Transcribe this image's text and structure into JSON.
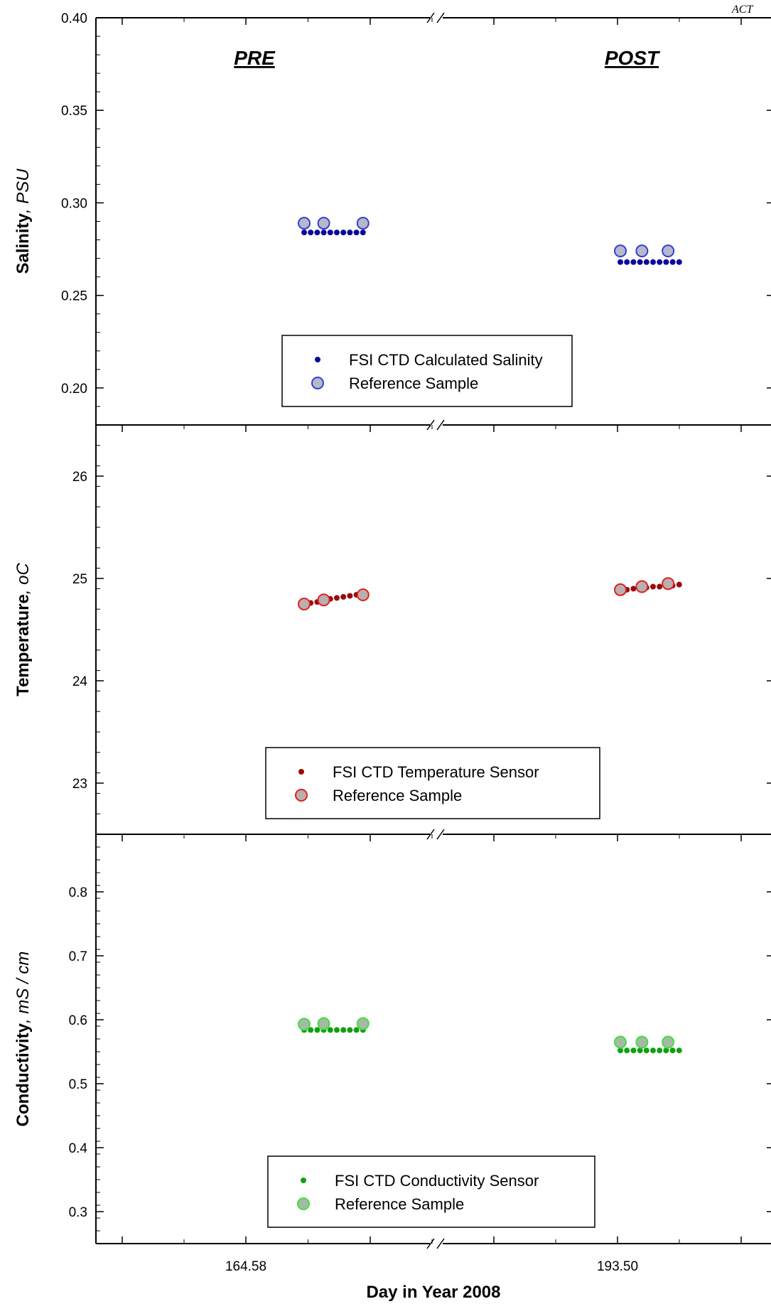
{
  "header": {
    "corner_text": "ACT"
  },
  "chart_data": [
    {
      "type": "scatter",
      "panel": "salinity",
      "ylabel": "Salinity",
      "ylabel_unit": ", PSU",
      "ylim": [
        0.18,
        0.4
      ],
      "yticks": [
        0.2,
        0.25,
        0.3,
        0.35,
        0.4
      ],
      "ytick_labels": [
        "0.20",
        "0.25",
        "0.30",
        "0.35",
        "0.40"
      ],
      "phase_labels": [
        "PRE",
        "POST"
      ],
      "legend_placement": "bottom-center",
      "series": [
        {
          "name": "FSI CTD Calculated Salinity",
          "marker": "small-dot",
          "color": "#0a0a9a",
          "pre": {
            "x_offsets": [
              0,
              1,
              2,
              3,
              4,
              5,
              6,
              7,
              8,
              9
            ],
            "y": [
              0.284,
              0.284,
              0.284,
              0.284,
              0.284,
              0.284,
              0.284,
              0.284,
              0.284,
              0.284
            ]
          },
          "post": {
            "x_offsets": [
              0,
              1,
              2,
              3,
              4,
              5,
              6,
              7,
              8,
              9
            ],
            "y": [
              0.268,
              0.268,
              0.268,
              0.268,
              0.268,
              0.268,
              0.268,
              0.268,
              0.268,
              0.268
            ]
          }
        },
        {
          "name": "Reference Sample",
          "marker": "circle",
          "color": "#3040d8",
          "fill": "#b8b8c8",
          "pre": {
            "x_offsets": [
              0,
              3,
              9
            ],
            "y": [
              0.289,
              0.289,
              0.289
            ]
          },
          "post": {
            "x_offsets": [
              0,
              3.3,
              7.3
            ],
            "y": [
              0.274,
              0.274,
              0.274
            ]
          }
        }
      ]
    },
    {
      "type": "scatter",
      "panel": "temperature",
      "ylabel": "Temperature",
      "ylabel_unit": ", oC",
      "ylim": [
        22.5,
        26.5
      ],
      "yticks": [
        23,
        24,
        25,
        26
      ],
      "ytick_labels": [
        "23",
        "24",
        "25",
        "26"
      ],
      "legend_placement": "bottom-center",
      "series": [
        {
          "name": "FSI CTD Temperature Sensor",
          "marker": "small-dot",
          "color": "#9a0a0a",
          "pre": {
            "x_offsets": [
              0,
              1,
              2,
              3,
              4,
              5,
              6,
              7,
              8,
              9
            ],
            "y": [
              24.75,
              24.76,
              24.77,
              24.78,
              24.8,
              24.81,
              24.82,
              24.83,
              24.84,
              24.86
            ]
          },
          "post": {
            "x_offsets": [
              0,
              1,
              2,
              3,
              4,
              5,
              6,
              7,
              8,
              9
            ],
            "y": [
              24.89,
              24.89,
              24.9,
              24.91,
              24.91,
              24.92,
              24.92,
              24.93,
              24.93,
              24.94
            ]
          }
        },
        {
          "name": "Reference Sample",
          "marker": "circle",
          "color": "#e02020",
          "fill": "#b8b0b0",
          "pre": {
            "x_offsets": [
              0,
              3,
              9
            ],
            "y": [
              24.75,
              24.79,
              24.84
            ]
          },
          "post": {
            "x_offsets": [
              0,
              3.3,
              7.3
            ],
            "y": [
              24.89,
              24.92,
              24.95
            ]
          }
        }
      ]
    },
    {
      "type": "scatter",
      "panel": "conductivity",
      "ylabel": "Conductivity",
      "ylabel_unit": ", mS / cm",
      "ylim": [
        0.25,
        0.89
      ],
      "yticks": [
        0.3,
        0.4,
        0.5,
        0.6,
        0.7,
        0.8
      ],
      "ytick_labels": [
        "0.3",
        "0.4",
        "0.5",
        "0.6",
        "0.7",
        "0.8"
      ],
      "xlabel": "Day in Year 2008",
      "xtick_labels": [
        "164.58",
        "193.50"
      ],
      "legend_placement": "bottom-center",
      "series": [
        {
          "name": "FSI CTD Conductivity Sensor",
          "marker": "small-dot",
          "color": "#10a010",
          "pre": {
            "x_offsets": [
              0,
              1,
              2,
              3,
              4,
              5,
              6,
              7,
              8,
              9
            ],
            "y": [
              0.584,
              0.584,
              0.584,
              0.584,
              0.584,
              0.584,
              0.584,
              0.584,
              0.584,
              0.584
            ]
          },
          "post": {
            "x_offsets": [
              0,
              1,
              2,
              3,
              4,
              5,
              6,
              7,
              8,
              9
            ],
            "y": [
              0.552,
              0.552,
              0.552,
              0.552,
              0.552,
              0.552,
              0.552,
              0.552,
              0.552,
              0.552
            ]
          }
        },
        {
          "name": "Reference Sample",
          "marker": "circle",
          "color": "#40e040",
          "fill": "#a8b8a8",
          "pre": {
            "x_offsets": [
              0,
              3,
              9
            ],
            "y": [
              0.593,
              0.594,
              0.594
            ]
          },
          "post": {
            "x_offsets": [
              0,
              3.3,
              7.3
            ],
            "y": [
              0.565,
              0.565,
              0.565
            ]
          }
        }
      ]
    }
  ]
}
